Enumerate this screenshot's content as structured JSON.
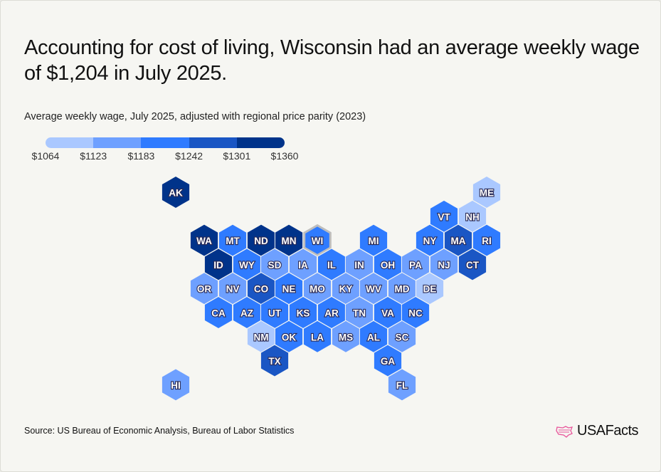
{
  "title": "Accounting for cost of living, Wisconsin had an average weekly wage of $1,204 in July 2025.",
  "subtitle": "Average weekly wage, July 2025, adjusted with regional price parity (2023)",
  "source": "Source: US Bureau of Economic Analysis, Bureau of Labor Statistics",
  "logo_text": "USAFacts",
  "chart_data": {
    "type": "heatmap",
    "subtype": "hex tile map",
    "legend": {
      "ticks": [
        "$1064",
        "$1123",
        "$1183",
        "$1242",
        "$1301",
        "$1360"
      ],
      "colors": [
        "#aac8ff",
        "#6ea0ff",
        "#2f7bff",
        "#1a56c4",
        "#00338a"
      ]
    },
    "highlight": "WI",
    "states": [
      {
        "abbr": "AK",
        "bin": 5
      },
      {
        "abbr": "ME",
        "bin": 1
      },
      {
        "abbr": "VT",
        "bin": 3
      },
      {
        "abbr": "NH",
        "bin": 1
      },
      {
        "abbr": "WA",
        "bin": 5
      },
      {
        "abbr": "MT",
        "bin": 3
      },
      {
        "abbr": "ND",
        "bin": 5
      },
      {
        "abbr": "MN",
        "bin": 5
      },
      {
        "abbr": "WI",
        "bin": 3
      },
      {
        "abbr": "MI",
        "bin": 3
      },
      {
        "abbr": "NY",
        "bin": 3
      },
      {
        "abbr": "MA",
        "bin": 4
      },
      {
        "abbr": "RI",
        "bin": 3
      },
      {
        "abbr": "ID",
        "bin": 5
      },
      {
        "abbr": "WY",
        "bin": 3
      },
      {
        "abbr": "SD",
        "bin": 2
      },
      {
        "abbr": "IA",
        "bin": 2
      },
      {
        "abbr": "IL",
        "bin": 3
      },
      {
        "abbr": "IN",
        "bin": 2
      },
      {
        "abbr": "OH",
        "bin": 3
      },
      {
        "abbr": "PA",
        "bin": 2
      },
      {
        "abbr": "NJ",
        "bin": 2
      },
      {
        "abbr": "CT",
        "bin": 4
      },
      {
        "abbr": "OR",
        "bin": 2
      },
      {
        "abbr": "NV",
        "bin": 2
      },
      {
        "abbr": "CO",
        "bin": 4
      },
      {
        "abbr": "NE",
        "bin": 3
      },
      {
        "abbr": "MO",
        "bin": 2
      },
      {
        "abbr": "KY",
        "bin": 2
      },
      {
        "abbr": "WV",
        "bin": 2
      },
      {
        "abbr": "MD",
        "bin": 2
      },
      {
        "abbr": "DE",
        "bin": 1
      },
      {
        "abbr": "CA",
        "bin": 3
      },
      {
        "abbr": "AZ",
        "bin": 3
      },
      {
        "abbr": "UT",
        "bin": 3
      },
      {
        "abbr": "KS",
        "bin": 3
      },
      {
        "abbr": "AR",
        "bin": 3
      },
      {
        "abbr": "TN",
        "bin": 2
      },
      {
        "abbr": "VA",
        "bin": 3
      },
      {
        "abbr": "NC",
        "bin": 3
      },
      {
        "abbr": "NM",
        "bin": 1
      },
      {
        "abbr": "OK",
        "bin": 3
      },
      {
        "abbr": "LA",
        "bin": 3
      },
      {
        "abbr": "MS",
        "bin": 2
      },
      {
        "abbr": "AL",
        "bin": 3
      },
      {
        "abbr": "SC",
        "bin": 2
      },
      {
        "abbr": "TX",
        "bin": 4
      },
      {
        "abbr": "GA",
        "bin": 3
      },
      {
        "abbr": "HI",
        "bin": 2
      },
      {
        "abbr": "FL",
        "bin": 2
      }
    ]
  }
}
